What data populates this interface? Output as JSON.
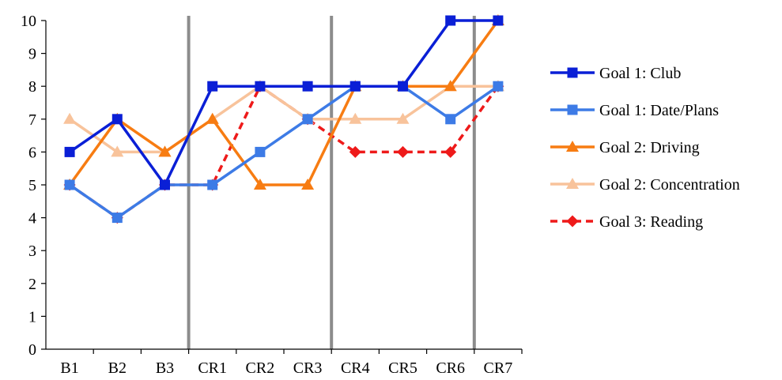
{
  "chart_data": {
    "type": "line",
    "categories": [
      "B1",
      "B2",
      "B3",
      "CR1",
      "CR2",
      "CR3",
      "CR4",
      "CR5",
      "CR6",
      "CR7"
    ],
    "ylim": [
      0,
      10
    ],
    "yticks": [
      0,
      1,
      2,
      3,
      4,
      5,
      6,
      7,
      8,
      9,
      10
    ],
    "grid": false,
    "legend_position": "right",
    "phase_lines_after": [
      "B3",
      "CR3",
      "CR6"
    ],
    "phase_line_color": "#8c8c8c",
    "series": [
      {
        "name": "Goal 1: Club",
        "color": "#0a1fd6",
        "marker": "square",
        "dash": false,
        "values": [
          6,
          7,
          5,
          8,
          8,
          8,
          8,
          8,
          10,
          10
        ]
      },
      {
        "name": "Goal 1: Date/Plans",
        "color": "#3d7be6",
        "marker": "square",
        "dash": false,
        "values": [
          5,
          4,
          5,
          5,
          6,
          7,
          8,
          8,
          7,
          8
        ]
      },
      {
        "name": "Goal 2: Driving",
        "color": "#f77c12",
        "marker": "triangle",
        "dash": false,
        "values": [
          5,
          7,
          6,
          7,
          5,
          5,
          8,
          8,
          8,
          10
        ]
      },
      {
        "name": "Goal 2: Concentration",
        "color": "#f8c39b",
        "marker": "triangle",
        "dash": false,
        "values": [
          7,
          6,
          6,
          7,
          8,
          7,
          7,
          7,
          8,
          8
        ]
      },
      {
        "name": "Goal 3: Reading",
        "color": "#ee1a1a",
        "marker": "diamond",
        "dash": true,
        "values": [
          5,
          4,
          5,
          5,
          8,
          7,
          6,
          6,
          6,
          8
        ]
      }
    ]
  }
}
